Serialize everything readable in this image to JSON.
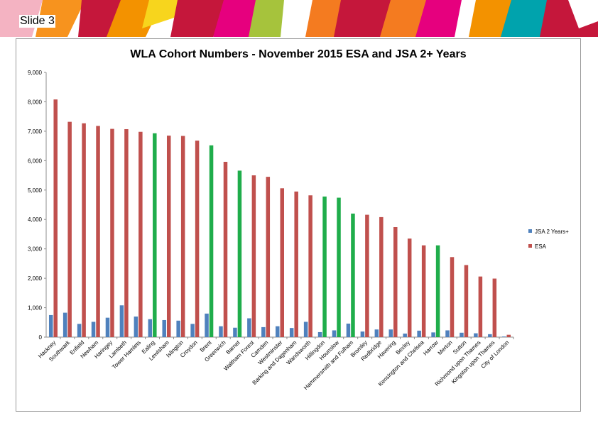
{
  "slide": {
    "label": "Slide 3"
  },
  "chart_data": {
    "type": "bar",
    "title": "WLA Cohort Numbers - November 2015 ESA and JSA 2+ Years",
    "xlabel": "",
    "ylabel": "",
    "ylim": [
      0,
      9000
    ],
    "yticks": [
      "0",
      "1,000",
      "2,000",
      "3,000",
      "4,000",
      "5,000",
      "6,000",
      "7,000",
      "8,000",
      "9,000"
    ],
    "legend_position": "right",
    "categories": [
      "Hackney",
      "Southwark",
      "Enfield",
      "Newham",
      "Haringey",
      "Lambeth",
      "Tower Hamlets",
      "Ealing",
      "Lewisham",
      "Islington",
      "Croydon",
      "Brent",
      "Greenwich",
      "Barnet",
      "Waltham Forest",
      "Camden",
      "Westminster",
      "Barking and Dagenham",
      "Wandsworth",
      "Hillingdon",
      "Hounslow",
      "Hammersmith and Fulham",
      "Bromley",
      "Redbridge",
      "Havering",
      "Bexley",
      "Kensington and Chelsea",
      "Harrow",
      "Merton",
      "Sutton",
      "Richmond upon Thames",
      "Kingston upon Thames",
      "City of London"
    ],
    "series": [
      {
        "name": "JSA 2 Years+",
        "color": "#4f81bd",
        "values": [
          750,
          830,
          450,
          520,
          660,
          1080,
          700,
          610,
          580,
          560,
          450,
          800,
          370,
          320,
          640,
          340,
          370,
          310,
          520,
          170,
          230,
          460,
          190,
          260,
          260,
          120,
          220,
          160,
          230,
          150,
          130,
          100,
          20
        ]
      },
      {
        "name": "ESA",
        "color": "#c0504d",
        "values": [
          8080,
          7320,
          7270,
          7180,
          7080,
          7070,
          6980,
          6930,
          6850,
          6840,
          6680,
          6520,
          5960,
          5660,
          5500,
          5450,
          5060,
          4950,
          4820,
          4780,
          4740,
          4200,
          4160,
          4080,
          3740,
          3350,
          3120,
          3120,
          2720,
          2450,
          2060,
          1990,
          80
        ]
      }
    ],
    "highlight_color": "#1fad4b",
    "highlighted_categories": [
      "Ealing",
      "Brent",
      "Barnet",
      "Hillingdon",
      "Hounslow",
      "Hammersmith and Fulham",
      "Harrow"
    ]
  }
}
